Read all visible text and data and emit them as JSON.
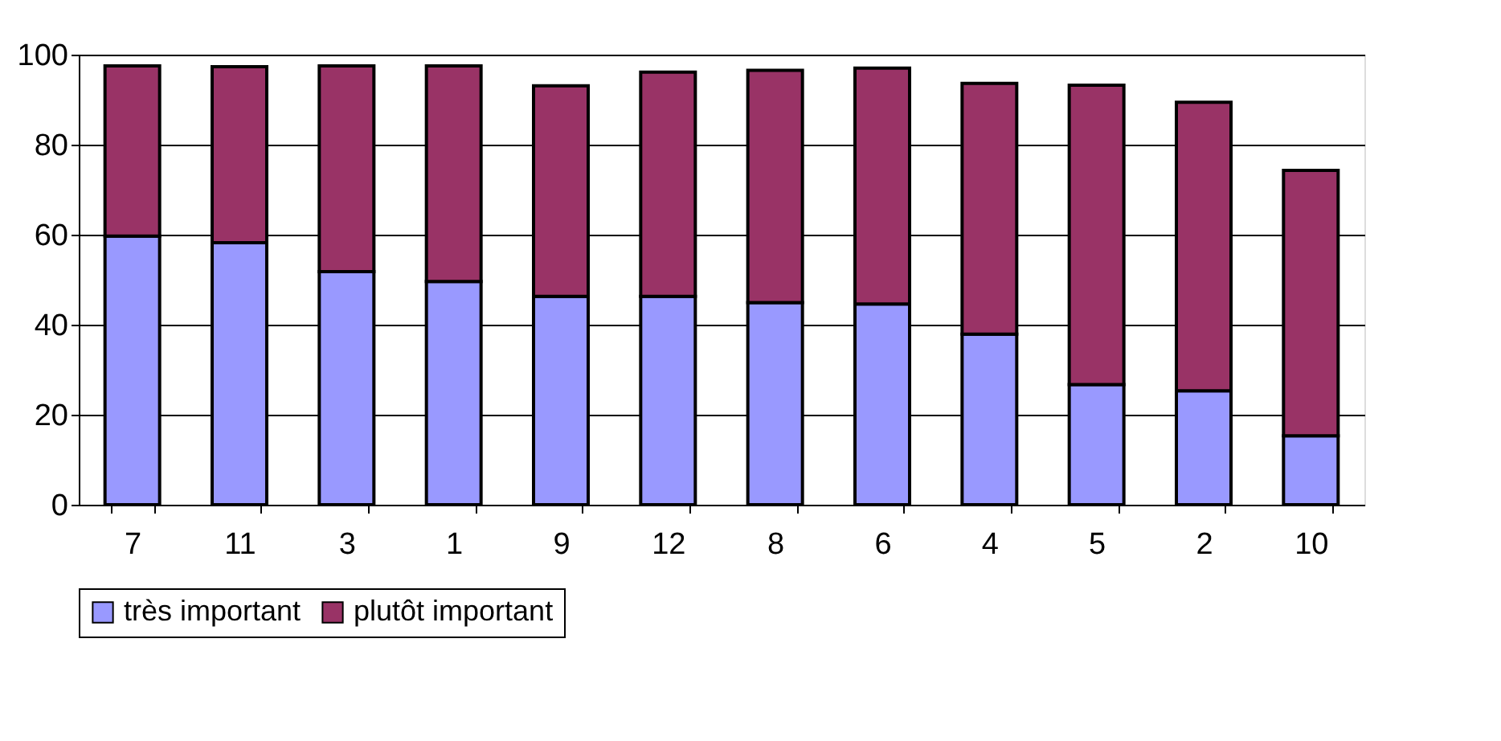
{
  "chart_data": {
    "type": "bar",
    "stacked": true,
    "categories": [
      "7",
      "11",
      "3",
      "1",
      "9",
      "12",
      "8",
      "6",
      "4",
      "5",
      "2",
      "10"
    ],
    "series": [
      {
        "name": "très important",
        "color": "#9999ff",
        "values": [
          59.7,
          58.2,
          51.8,
          49.6,
          46.3,
          46.3,
          44.9,
          44.6,
          37.9,
          26.7,
          25.3,
          15.3
        ]
      },
      {
        "name": "plutôt important",
        "color": "#993366",
        "values": [
          37.8,
          39.1,
          45.7,
          47.9,
          46.8,
          49.8,
          51.6,
          52.4,
          55.7,
          66.5,
          64.1,
          59.0
        ]
      }
    ],
    "ylim": [
      0,
      100
    ],
    "yticks": [
      0,
      20,
      40,
      60,
      80,
      100
    ],
    "grid": "y",
    "legend": "bottom"
  }
}
